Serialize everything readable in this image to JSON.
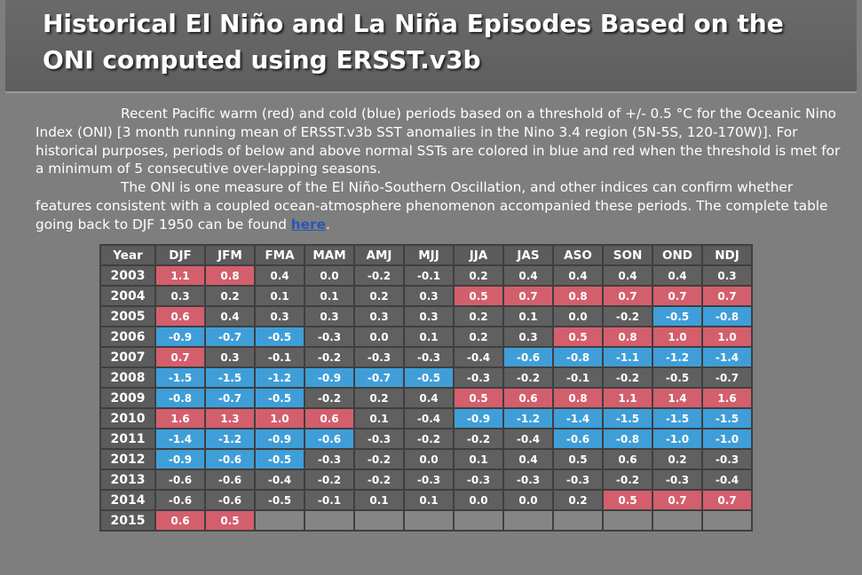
{
  "header": {
    "title": "Historical El Niño and La Niña Episodes Based on the ONI computed using ERSST.v3b"
  },
  "intro": {
    "p1": "Recent Pacific warm (red) and cold (blue) periods based on a threshold of +/- 0.5 °C for the Oceanic Nino Index (ONI) [3 month running mean of ERSST.v3b SST anomalies in the Nino 3.4 region (5N-5S, 120-170W)]. For historical purposes, periods of below and above normal SSTs are colored in blue and red when the threshold is met for a minimum of 5 consecutive over-lapping seasons.",
    "p2_before": "The ONI is one measure of the El Niño-Southern Oscillation, and other indices can confirm whether features consistent with a coupled ocean-atmosphere phenomenon accompanied these periods. The complete table going back to DJF 1950 can be found ",
    "link": "here",
    "p2_after": "."
  },
  "colors": {
    "warm": "#d35f6d",
    "cold": "#3f9ed8",
    "neutral": "#606060",
    "empty": "#858585"
  },
  "table": {
    "columns": [
      "Year",
      "DJF",
      "JFM",
      "FMA",
      "MAM",
      "AMJ",
      "MJJ",
      "JJA",
      "JAS",
      "ASO",
      "SON",
      "OND",
      "NDJ"
    ],
    "rows": [
      {
        "year": "2003",
        "values": [
          "1.1",
          "0.8",
          "0.4",
          "0.0",
          "-0.2",
          "-0.1",
          "0.2",
          "0.4",
          "0.4",
          "0.4",
          "0.4",
          "0.3"
        ],
        "state": [
          "w",
          "w",
          "n",
          "n",
          "n",
          "n",
          "n",
          "n",
          "n",
          "n",
          "n",
          "n"
        ]
      },
      {
        "year": "2004",
        "values": [
          "0.3",
          "0.2",
          "0.1",
          "0.1",
          "0.2",
          "0.3",
          "0.5",
          "0.7",
          "0.8",
          "0.7",
          "0.7",
          "0.7"
        ],
        "state": [
          "n",
          "n",
          "n",
          "n",
          "n",
          "n",
          "w",
          "w",
          "w",
          "w",
          "w",
          "w"
        ]
      },
      {
        "year": "2005",
        "values": [
          "0.6",
          "0.4",
          "0.3",
          "0.3",
          "0.3",
          "0.3",
          "0.2",
          "0.1",
          "0.0",
          "-0.2",
          "-0.5",
          "-0.8"
        ],
        "state": [
          "w",
          "n",
          "n",
          "n",
          "n",
          "n",
          "n",
          "n",
          "n",
          "n",
          "c",
          "c"
        ]
      },
      {
        "year": "2006",
        "values": [
          "-0.9",
          "-0.7",
          "-0.5",
          "-0.3",
          "0.0",
          "0.1",
          "0.2",
          "0.3",
          "0.5",
          "0.8",
          "1.0",
          "1.0"
        ],
        "state": [
          "c",
          "c",
          "c",
          "n",
          "n",
          "n",
          "n",
          "n",
          "w",
          "w",
          "w",
          "w"
        ]
      },
      {
        "year": "2007",
        "values": [
          "0.7",
          "0.3",
          "-0.1",
          "-0.2",
          "-0.3",
          "-0.3",
          "-0.4",
          "-0.6",
          "-0.8",
          "-1.1",
          "-1.2",
          "-1.4"
        ],
        "state": [
          "w",
          "n",
          "n",
          "n",
          "n",
          "n",
          "n",
          "c",
          "c",
          "c",
          "c",
          "c"
        ]
      },
      {
        "year": "2008",
        "values": [
          "-1.5",
          "-1.5",
          "-1.2",
          "-0.9",
          "-0.7",
          "-0.5",
          "-0.3",
          "-0.2",
          "-0.1",
          "-0.2",
          "-0.5",
          "-0.7"
        ],
        "state": [
          "c",
          "c",
          "c",
          "c",
          "c",
          "c",
          "n",
          "n",
          "n",
          "n",
          "n",
          "n"
        ]
      },
      {
        "year": "2009",
        "values": [
          "-0.8",
          "-0.7",
          "-0.5",
          "-0.2",
          "0.2",
          "0.4",
          "0.5",
          "0.6",
          "0.8",
          "1.1",
          "1.4",
          "1.6"
        ],
        "state": [
          "c",
          "c",
          "c",
          "n",
          "n",
          "n",
          "w",
          "w",
          "w",
          "w",
          "w",
          "w"
        ]
      },
      {
        "year": "2010",
        "values": [
          "1.6",
          "1.3",
          "1.0",
          "0.6",
          "0.1",
          "-0.4",
          "-0.9",
          "-1.2",
          "-1.4",
          "-1.5",
          "-1.5",
          "-1.5"
        ],
        "state": [
          "w",
          "w",
          "w",
          "w",
          "n",
          "n",
          "c",
          "c",
          "c",
          "c",
          "c",
          "c"
        ]
      },
      {
        "year": "2011",
        "values": [
          "-1.4",
          "-1.2",
          "-0.9",
          "-0.6",
          "-0.3",
          "-0.2",
          "-0.2",
          "-0.4",
          "-0.6",
          "-0.8",
          "-1.0",
          "-1.0"
        ],
        "state": [
          "c",
          "c",
          "c",
          "c",
          "n",
          "n",
          "n",
          "n",
          "c",
          "c",
          "c",
          "c"
        ]
      },
      {
        "year": "2012",
        "values": [
          "-0.9",
          "-0.6",
          "-0.5",
          "-0.3",
          "-0.2",
          "0.0",
          "0.1",
          "0.4",
          "0.5",
          "0.6",
          "0.2",
          "-0.3"
        ],
        "state": [
          "c",
          "c",
          "c",
          "n",
          "n",
          "n",
          "n",
          "n",
          "n",
          "n",
          "n",
          "n"
        ]
      },
      {
        "year": "2013",
        "values": [
          "-0.6",
          "-0.6",
          "-0.4",
          "-0.2",
          "-0.2",
          "-0.3",
          "-0.3",
          "-0.3",
          "-0.3",
          "-0.2",
          "-0.3",
          "-0.4"
        ],
        "state": [
          "n",
          "n",
          "n",
          "n",
          "n",
          "n",
          "n",
          "n",
          "n",
          "n",
          "n",
          "n"
        ]
      },
      {
        "year": "2014",
        "values": [
          "-0.6",
          "-0.6",
          "-0.5",
          "-0.1",
          "0.1",
          "0.1",
          "0.0",
          "0.0",
          "0.2",
          "0.5",
          "0.7",
          "0.7"
        ],
        "state": [
          "n",
          "n",
          "n",
          "n",
          "n",
          "n",
          "n",
          "n",
          "n",
          "w",
          "w",
          "w"
        ]
      },
      {
        "year": "2015",
        "values": [
          "0.6",
          "0.5",
          "",
          "",
          "",
          "",
          "",
          "",
          "",
          "",
          "",
          ""
        ],
        "state": [
          "w",
          "w",
          "e",
          "e",
          "e",
          "e",
          "e",
          "e",
          "e",
          "e",
          "e",
          "e"
        ]
      }
    ]
  }
}
